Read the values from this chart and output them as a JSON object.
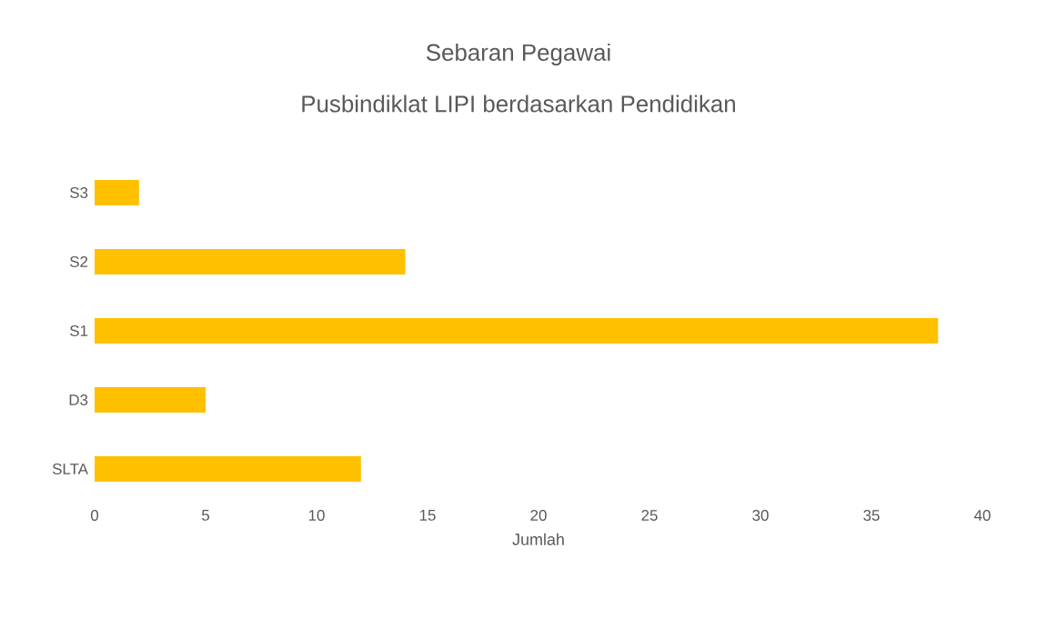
{
  "chart_data": {
    "type": "bar",
    "orientation": "horizontal",
    "title": "Sebaran Pegawai",
    "subtitle": "Pusbindiklat LIPI berdasarkan Pendidikan",
    "xlabel": "Jumlah",
    "categories": [
      "S3",
      "S2",
      "S1",
      "D3",
      "SLTA"
    ],
    "values": [
      2,
      14,
      38,
      5,
      12
    ],
    "color": "#ffc000",
    "xlim": [
      0,
      40
    ],
    "xticks": [
      0,
      5,
      10,
      15,
      20,
      25,
      30,
      35,
      40
    ]
  }
}
